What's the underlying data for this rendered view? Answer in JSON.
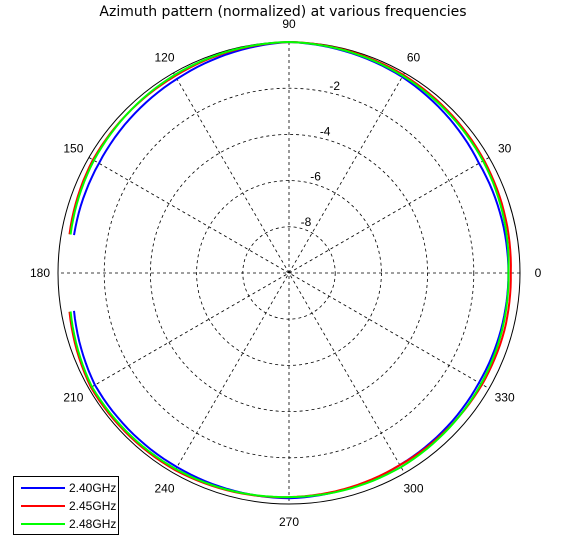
{
  "chart_data": {
    "type": "line",
    "polar": true,
    "title": "Azimuth pattern (normalized) at various frequencies",
    "angle_ticks": [
      "0",
      "30",
      "60",
      "90",
      "120",
      "150",
      "180",
      "210",
      "240",
      "270",
      "300",
      "330"
    ],
    "angle_tick_values": [
      0,
      30,
      60,
      90,
      120,
      150,
      180,
      210,
      240,
      270,
      300,
      330
    ],
    "radial_ticks": [
      "-2",
      "-4",
      "-6",
      "-8"
    ],
    "radial_tick_values": [
      -2,
      -4,
      -6,
      -8
    ],
    "rlim": [
      -10,
      0
    ],
    "grid": true,
    "legend_position": "bottom-left",
    "series": [
      {
        "name": "2.40GHz",
        "color": "#0000ff",
        "angles": [
          0,
          30,
          60,
          90,
          120,
          150,
          170,
          180,
          190,
          210,
          240,
          270,
          300,
          330,
          345
        ],
        "values": [
          -0.5,
          -0.5,
          -0.2,
          0.0,
          -0.3,
          -0.5,
          -0.55,
          null,
          -0.55,
          -0.3,
          -0.3,
          -0.25,
          -0.4,
          -0.5,
          -0.5
        ]
      },
      {
        "name": "2.45GHz",
        "color": "#ff0000",
        "angles": [
          0,
          30,
          60,
          90,
          120,
          150,
          170,
          180,
          190,
          210,
          240,
          270,
          300,
          330,
          345
        ],
        "values": [
          -0.4,
          -0.25,
          -0.1,
          0.0,
          -0.15,
          -0.2,
          -0.35,
          null,
          -0.35,
          -0.1,
          -0.15,
          -0.3,
          -0.4,
          -0.35,
          -0.35
        ]
      },
      {
        "name": "2.48GHz",
        "color": "#00ff00",
        "angles": [
          0,
          30,
          60,
          90,
          120,
          150,
          170,
          180,
          190,
          210,
          240,
          270,
          300,
          330,
          345
        ],
        "values": [
          -0.5,
          -0.3,
          -0.15,
          0.0,
          -0.1,
          -0.25,
          -0.4,
          null,
          -0.4,
          -0.15,
          -0.2,
          -0.3,
          -0.3,
          -0.4,
          -0.45
        ]
      }
    ]
  }
}
